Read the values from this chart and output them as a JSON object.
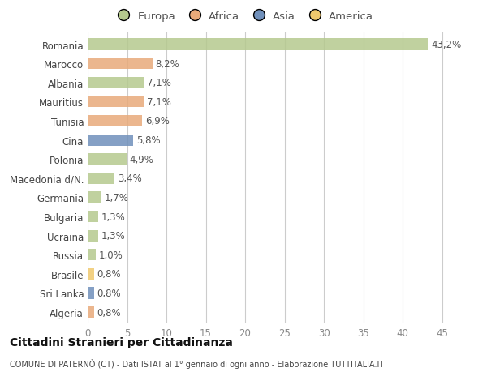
{
  "countries": [
    "Romania",
    "Marocco",
    "Albania",
    "Mauritius",
    "Tunisia",
    "Cina",
    "Polonia",
    "Macedonia d/N.",
    "Germania",
    "Bulgaria",
    "Ucraina",
    "Russia",
    "Brasile",
    "Sri Lanka",
    "Algeria"
  ],
  "values": [
    43.2,
    8.2,
    7.1,
    7.1,
    6.9,
    5.8,
    4.9,
    3.4,
    1.7,
    1.3,
    1.3,
    1.0,
    0.8,
    0.8,
    0.8
  ],
  "labels": [
    "43,2%",
    "8,2%",
    "7,1%",
    "7,1%",
    "6,9%",
    "5,8%",
    "4,9%",
    "3,4%",
    "1,7%",
    "1,3%",
    "1,3%",
    "1,0%",
    "0,8%",
    "0,8%",
    "0,8%"
  ],
  "colors": [
    "#b5c98e",
    "#e8aa7a",
    "#b5c98e",
    "#e8aa7a",
    "#e8aa7a",
    "#7090bb",
    "#b5c98e",
    "#b5c98e",
    "#b5c98e",
    "#b5c98e",
    "#b5c98e",
    "#b5c98e",
    "#f0c96e",
    "#7090bb",
    "#e8aa7a"
  ],
  "legend_labels": [
    "Europa",
    "Africa",
    "Asia",
    "America"
  ],
  "legend_colors": [
    "#b5c98e",
    "#e8aa7a",
    "#7090bb",
    "#f0c96e"
  ],
  "xlim": [
    0,
    47
  ],
  "xticks": [
    0,
    5,
    10,
    15,
    20,
    25,
    30,
    35,
    40,
    45
  ],
  "title": "Cittadini Stranieri per Cittadinanza",
  "subtitle": "COMUNE DI PATERNÒ (CT) - Dati ISTAT al 1° gennaio di ogni anno - Elaborazione TUTTITALIA.IT",
  "bg_color": "#ffffff",
  "bar_height": 0.6,
  "label_fontsize": 8.5,
  "tick_fontsize": 8.5,
  "legend_fontsize": 9.5
}
